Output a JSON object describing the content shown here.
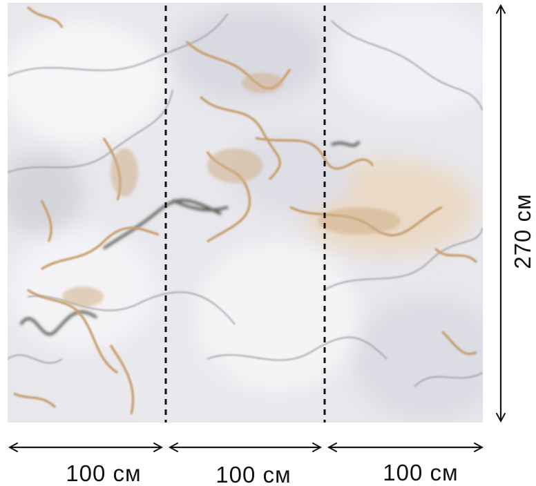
{
  "panels": [
    {
      "width_label": "100 см"
    },
    {
      "width_label": "100 см"
    },
    {
      "width_label": "100 см"
    }
  ],
  "height_label": "270 см",
  "colors": {
    "marble_base": "#e9e9ee",
    "gold_vein": "#c8a070",
    "dark_vein": "#5d6259",
    "line": "#111111"
  }
}
